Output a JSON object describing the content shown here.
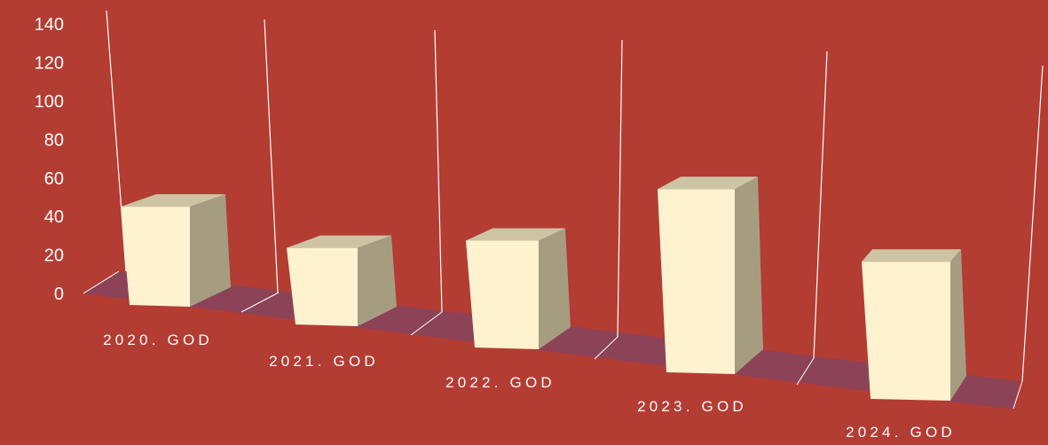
{
  "chart_data": {
    "type": "bar",
    "style": "3d-column-perspective",
    "categories": [
      "2020. GOD",
      "2021. GOD",
      "2022. GOD",
      "2023. GOD",
      "2024. GOD"
    ],
    "series": [
      {
        "values": [
          68,
          52,
          70,
          114,
          80
        ]
      }
    ],
    "y_ticks": [
      "0",
      "20",
      "40",
      "60",
      "80",
      "100",
      "120",
      "140"
    ],
    "ylim": [
      0,
      140
    ],
    "grid": "vertical lines between categories",
    "legend": "none",
    "colors": {
      "background": "#b33c33",
      "bar_front": "#fff3cf",
      "bar_side": "#a69d80",
      "bar_top": "#cdc4a4",
      "floor": "#8c4358",
      "axis_text": "#ffffff",
      "gridline": "#ffffff"
    }
  }
}
